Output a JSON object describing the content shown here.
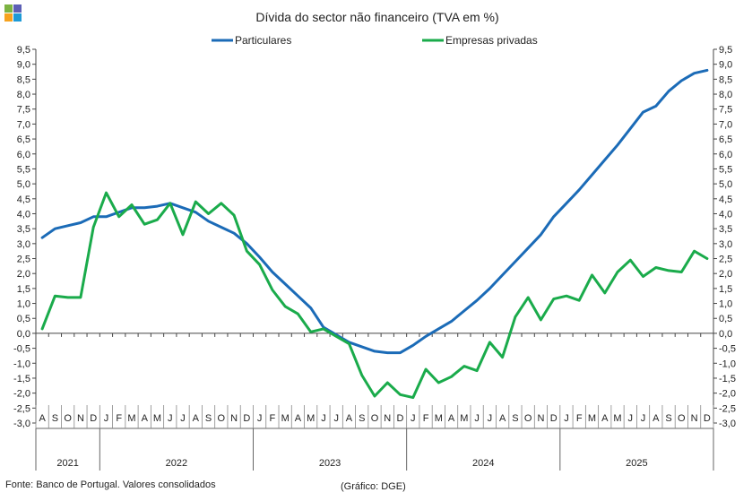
{
  "logo": {
    "colors": [
      "#7cb342",
      "#5c5fb5",
      "#f6a21e",
      "#1e9ad6"
    ]
  },
  "chart_data": {
    "type": "line",
    "title": "Dívida do sector não financeiro (TVA em %)",
    "ylim": [
      -3.0,
      9.5
    ],
    "yticks": [
      "9,5",
      "9,0",
      "8,5",
      "8,0",
      "7,5",
      "7,0",
      "6,5",
      "6,0",
      "5,5",
      "5,0",
      "4,5",
      "4,0",
      "3,5",
      "3,0",
      "2,5",
      "2,0",
      "1,5",
      "1,0",
      "0,5",
      "0,0",
      "-0,5",
      "-1,0",
      "-1,5",
      "-2,0",
      "-2,5",
      "-3,0"
    ],
    "legend_position": "top",
    "grid": false,
    "x": [
      "A",
      "S",
      "O",
      "N",
      "D",
      "J",
      "F",
      "M",
      "A",
      "M",
      "J",
      "J",
      "A",
      "S",
      "O",
      "N",
      "D",
      "J",
      "F",
      "M",
      "A",
      "M",
      "J",
      "J",
      "A",
      "S",
      "O",
      "N",
      "D",
      "J",
      "F",
      "M",
      "A",
      "M",
      "J",
      "J",
      "A",
      "S",
      "O",
      "N",
      "D",
      "J",
      "F",
      "M",
      "A",
      "M",
      "J",
      "J",
      "A",
      "S",
      "O",
      "N",
      "D"
    ],
    "years": [
      {
        "label": "2021",
        "count": 5
      },
      {
        "label": "2022",
        "count": 12
      },
      {
        "label": "2023",
        "count": 12
      },
      {
        "label": "2024",
        "count": 12
      },
      {
        "label": "2025",
        "count": 12
      }
    ],
    "series": [
      {
        "name": "Particulares",
        "color": "#1b6bb7",
        "values": [
          3.2,
          3.5,
          3.6,
          3.7,
          3.9,
          3.9,
          4.05,
          4.2,
          4.2,
          4.25,
          4.35,
          4.2,
          4.05,
          3.75,
          3.55,
          3.35,
          3.0,
          2.55,
          2.05,
          1.65,
          1.25,
          0.85,
          0.2,
          -0.05,
          -0.3,
          -0.45,
          -0.6,
          -0.65,
          -0.65,
          -0.4,
          -0.1,
          0.15,
          0.4,
          0.75,
          1.1,
          1.5,
          1.95,
          2.4,
          2.85,
          3.3,
          3.9,
          4.35,
          4.8,
          5.3,
          5.8,
          6.3,
          6.85,
          7.4,
          7.6,
          8.1,
          8.45,
          8.7,
          8.8
        ]
      },
      {
        "name": "Empresas privadas",
        "color": "#1aab4b",
        "values": [
          0.15,
          1.25,
          1.2,
          1.2,
          3.55,
          4.7,
          3.9,
          4.3,
          3.65,
          3.8,
          4.35,
          3.3,
          4.4,
          4.0,
          4.35,
          3.95,
          2.75,
          2.3,
          1.45,
          0.9,
          0.65,
          0.05,
          0.15,
          -0.1,
          -0.35,
          -1.4,
          -2.1,
          -1.65,
          -2.05,
          -2.15,
          -1.2,
          -1.65,
          -1.45,
          -1.1,
          -1.25,
          -0.3,
          -0.8,
          0.55,
          1.2,
          0.45,
          1.15,
          1.25,
          1.1,
          1.95,
          1.35,
          2.05,
          2.45,
          1.9,
          2.2,
          2.1,
          2.05,
          2.75,
          2.5
        ]
      }
    ]
  },
  "footer": {
    "source": "Fonte: Banco de Portugal. Valores consolidados",
    "credit": "(Gráfico: DGE)"
  }
}
